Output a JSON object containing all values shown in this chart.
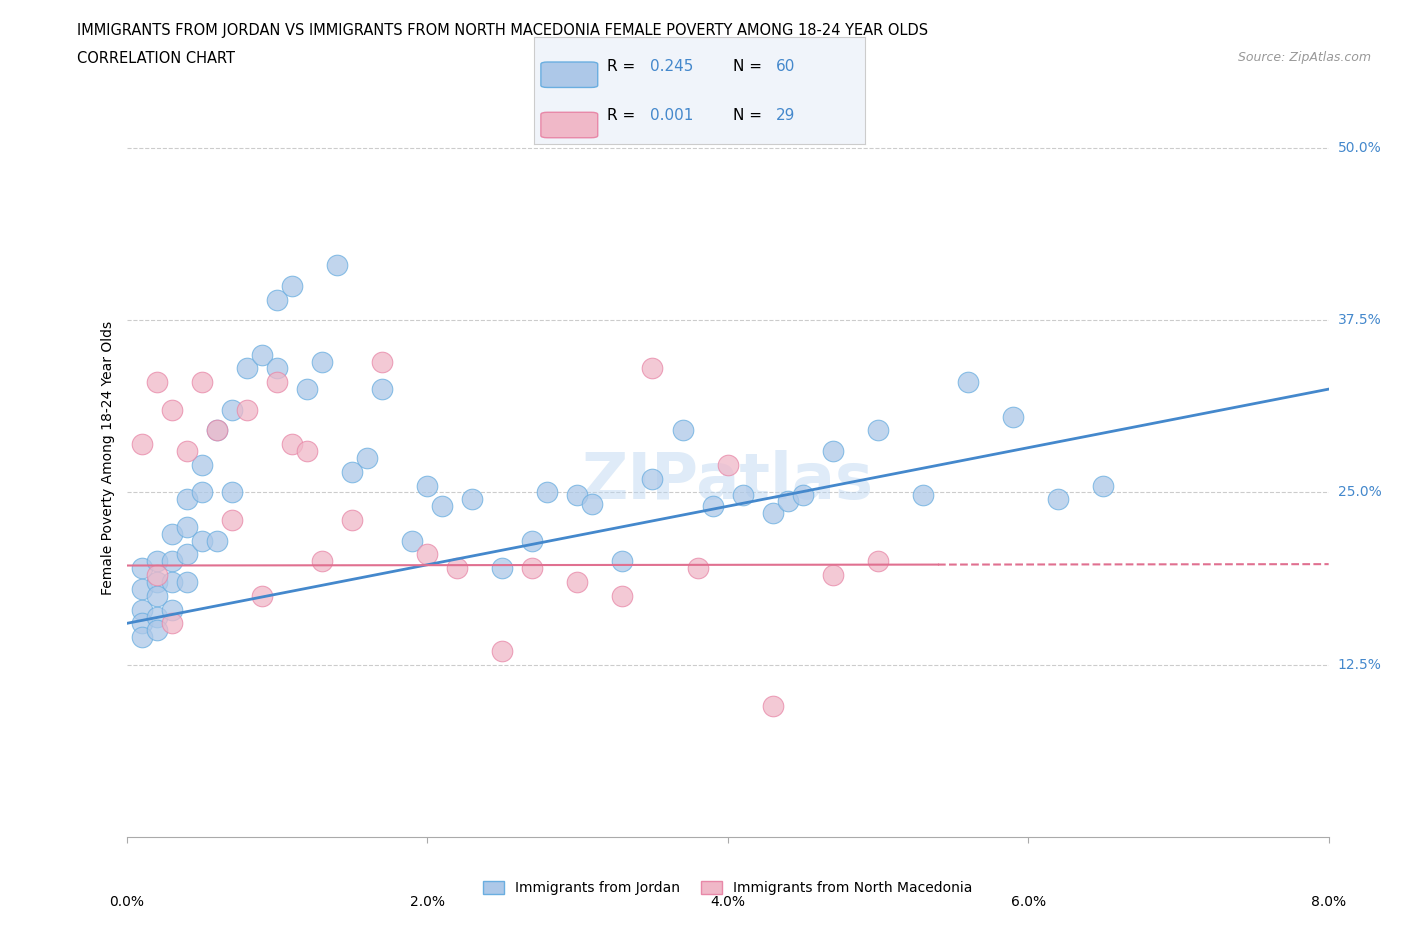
{
  "title_line1": "IMMIGRANTS FROM JORDAN VS IMMIGRANTS FROM NORTH MACEDONIA FEMALE POVERTY AMONG 18-24 YEAR OLDS",
  "title_line2": "CORRELATION CHART",
  "source": "Source: ZipAtlas.com",
  "ylabel": "Female Poverty Among 18-24 Year Olds",
  "xlim": [
    0.0,
    0.08
  ],
  "ylim": [
    0.0,
    0.55
  ],
  "xticks": [
    0.0,
    0.02,
    0.04,
    0.06,
    0.08
  ],
  "xticklabels": [
    "0.0%",
    "2.0%",
    "4.0%",
    "6.0%",
    "8.0%"
  ],
  "ytick_positions": [
    0.125,
    0.25,
    0.375,
    0.5
  ],
  "ytick_labels": [
    "12.5%",
    "25.0%",
    "37.5%",
    "50.0%"
  ],
  "color_jordan": "#adc8e8",
  "color_jordan_edge": "#6aaee0",
  "color_jordan_line": "#4488cc",
  "color_macedonia": "#f0b8c8",
  "color_macedonia_edge": "#e888a8",
  "color_macedonia_line": "#e07090",
  "color_text_blue": "#4488cc",
  "R_jordan": 0.245,
  "N_jordan": 60,
  "R_macedonia": 0.001,
  "N_macedonia": 29,
  "legend_label_jordan": "Immigrants from Jordan",
  "legend_label_macedonia": "Immigrants from North Macedonia",
  "watermark": "ZIPatlas",
  "jordan_x": [
    0.001,
    0.001,
    0.001,
    0.001,
    0.001,
    0.002,
    0.002,
    0.002,
    0.002,
    0.002,
    0.003,
    0.003,
    0.003,
    0.003,
    0.004,
    0.004,
    0.004,
    0.004,
    0.005,
    0.005,
    0.005,
    0.006,
    0.006,
    0.007,
    0.007,
    0.008,
    0.009,
    0.01,
    0.01,
    0.011,
    0.012,
    0.013,
    0.014,
    0.015,
    0.016,
    0.017,
    0.019,
    0.02,
    0.021,
    0.023,
    0.025,
    0.027,
    0.028,
    0.03,
    0.031,
    0.033,
    0.035,
    0.037,
    0.039,
    0.041,
    0.043,
    0.044,
    0.045,
    0.047,
    0.05,
    0.053,
    0.056,
    0.059,
    0.062,
    0.065
  ],
  "jordan_y": [
    0.195,
    0.18,
    0.165,
    0.155,
    0.145,
    0.2,
    0.185,
    0.175,
    0.16,
    0.15,
    0.22,
    0.2,
    0.185,
    0.165,
    0.245,
    0.225,
    0.205,
    0.185,
    0.27,
    0.25,
    0.215,
    0.295,
    0.215,
    0.31,
    0.25,
    0.34,
    0.35,
    0.39,
    0.34,
    0.4,
    0.325,
    0.345,
    0.415,
    0.265,
    0.275,
    0.325,
    0.215,
    0.255,
    0.24,
    0.245,
    0.195,
    0.215,
    0.25,
    0.248,
    0.242,
    0.2,
    0.26,
    0.295,
    0.24,
    0.248,
    0.235,
    0.244,
    0.248,
    0.28,
    0.295,
    0.248,
    0.33,
    0.305,
    0.245,
    0.255
  ],
  "macedonia_x": [
    0.001,
    0.002,
    0.002,
    0.003,
    0.003,
    0.004,
    0.005,
    0.006,
    0.007,
    0.008,
    0.009,
    0.01,
    0.011,
    0.012,
    0.013,
    0.015,
    0.017,
    0.02,
    0.022,
    0.025,
    0.027,
    0.03,
    0.033,
    0.035,
    0.038,
    0.04,
    0.043,
    0.047,
    0.05
  ],
  "macedonia_y": [
    0.285,
    0.19,
    0.33,
    0.155,
    0.31,
    0.28,
    0.33,
    0.295,
    0.23,
    0.31,
    0.175,
    0.33,
    0.285,
    0.28,
    0.2,
    0.23,
    0.345,
    0.205,
    0.195,
    0.135,
    0.195,
    0.185,
    0.175,
    0.34,
    0.195,
    0.27,
    0.095,
    0.19,
    0.2
  ]
}
